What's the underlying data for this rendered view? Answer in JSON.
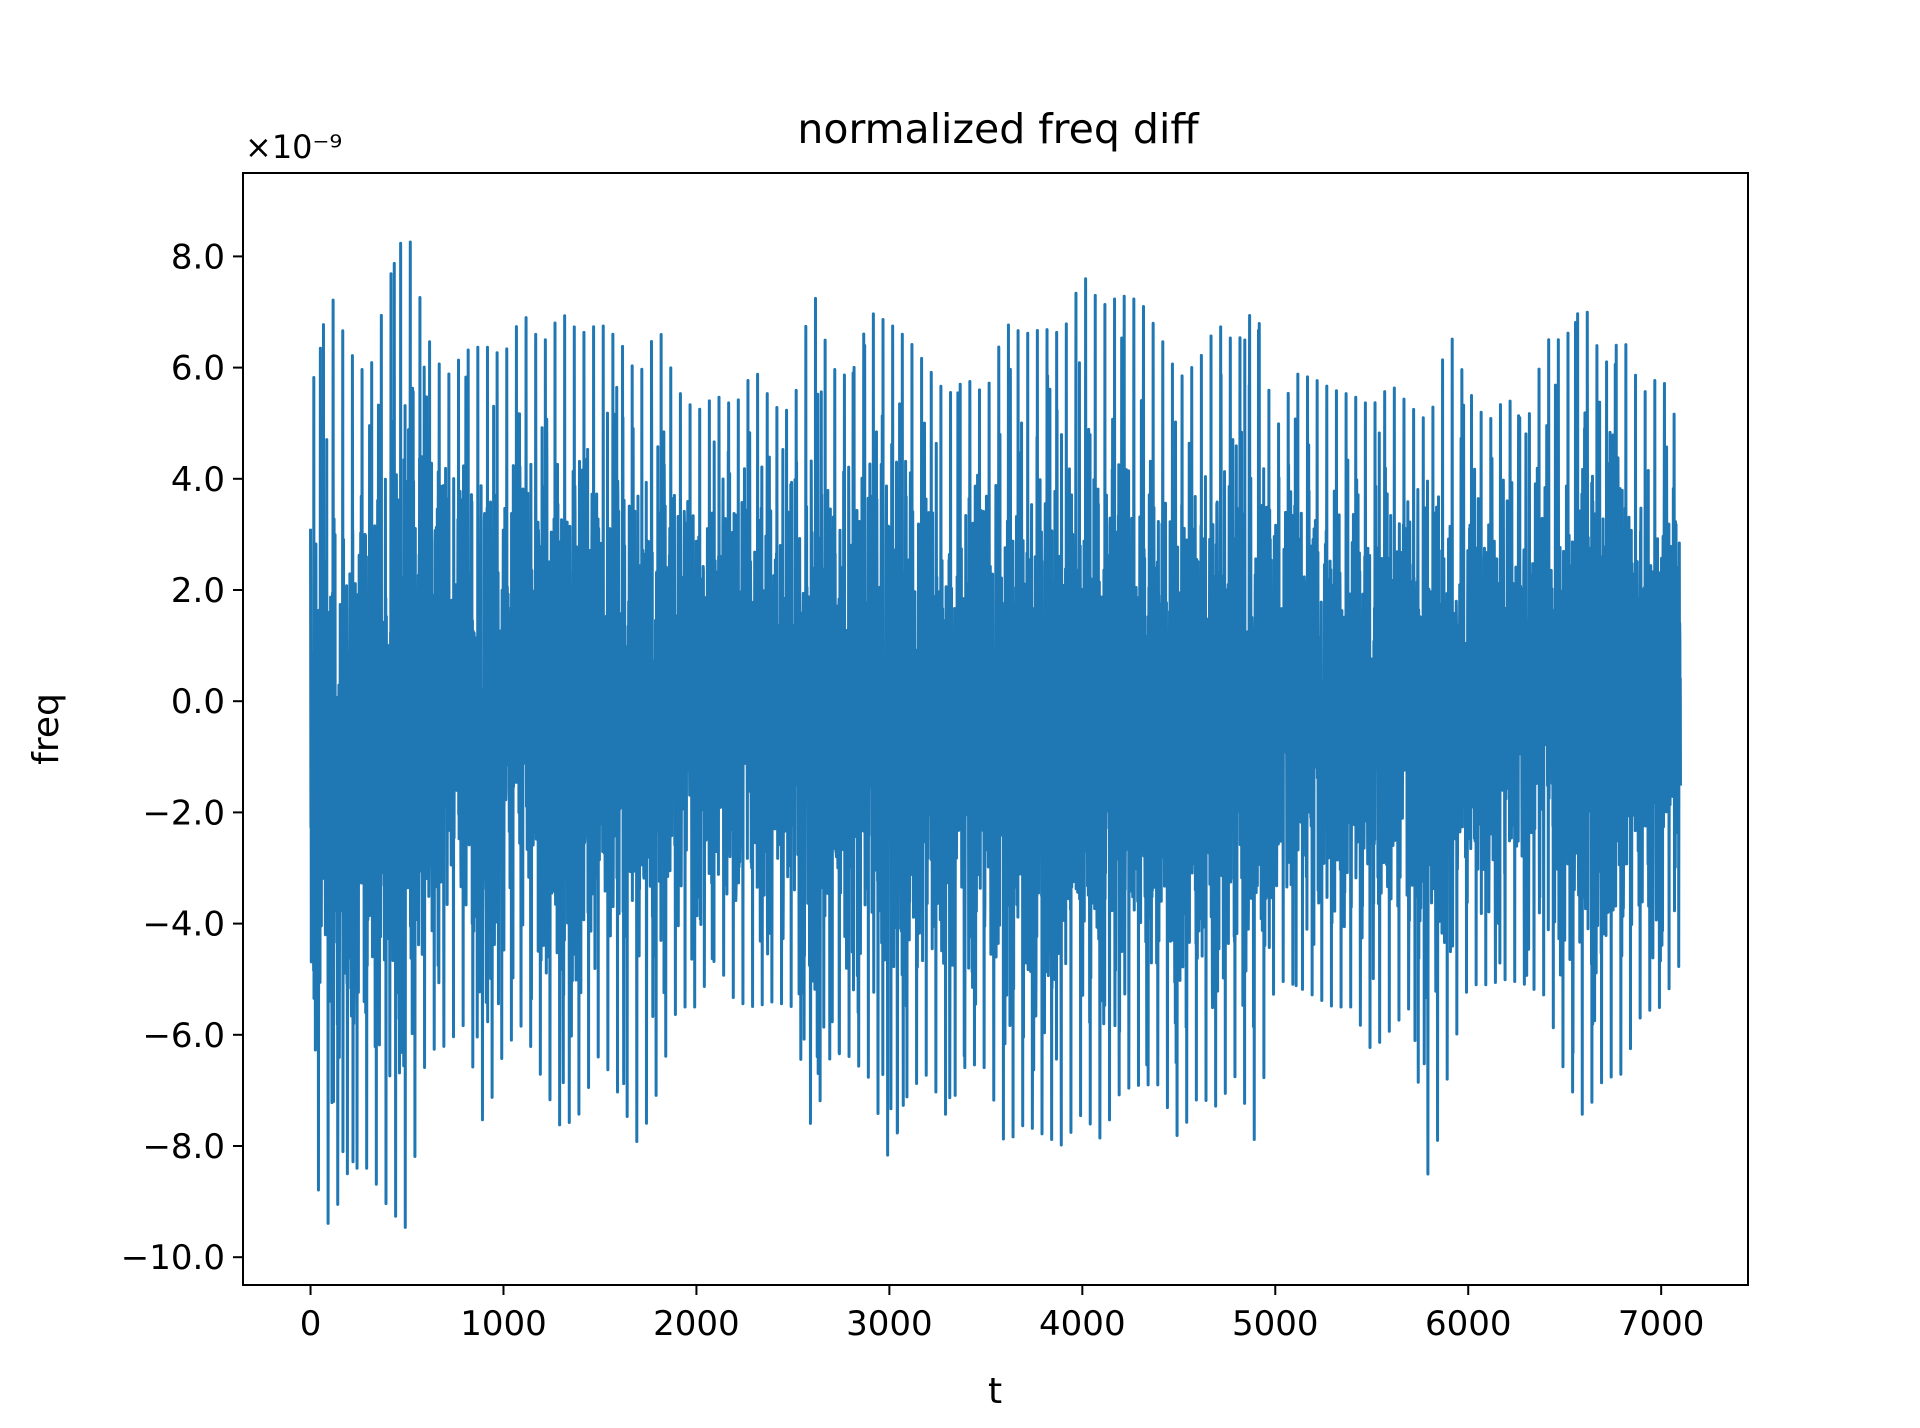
{
  "chart_data": {
    "type": "line",
    "title": "normalized freq diff",
    "xlabel": "t",
    "ylabel": "freq",
    "y_offset_label": "×10⁻⁹",
    "xlim": [
      -350,
      7450
    ],
    "ylim": [
      -10.5,
      9.5
    ],
    "x_ticks": [
      0,
      1000,
      2000,
      3000,
      4000,
      5000,
      6000,
      7000
    ],
    "x_tick_labels": [
      "0",
      "1000",
      "2000",
      "3000",
      "4000",
      "5000",
      "6000",
      "7000"
    ],
    "y_ticks": [
      -10,
      -8,
      -6,
      -4,
      -2,
      0,
      2,
      4,
      6,
      8
    ],
    "y_tick_labels": [
      "−10.0",
      "−8.0",
      "−6.0",
      "−4.0",
      "−2.0",
      "0.0",
      "2.0",
      "4.0",
      "6.0",
      "8.0"
    ],
    "grid": false,
    "series": [
      {
        "color": "#1f77b4",
        "x_range": [
          0,
          7100
        ],
        "sample_count": 7101,
        "envelope_step": 100,
        "envelope_x": [
          0,
          100,
          200,
          300,
          400,
          500,
          600,
          700,
          800,
          900,
          1000,
          1100,
          1200,
          1300,
          1400,
          1500,
          1600,
          1700,
          1800,
          1900,
          2000,
          2100,
          2200,
          2300,
          2400,
          2500,
          2600,
          2700,
          2800,
          2900,
          3000,
          3100,
          3200,
          3300,
          3400,
          3500,
          3600,
          3700,
          3800,
          3900,
          4000,
          4100,
          4200,
          4300,
          4400,
          4500,
          4600,
          4700,
          4800,
          4900,
          5000,
          5100,
          5200,
          5300,
          5400,
          5500,
          5600,
          5700,
          5800,
          5900,
          6000,
          6100,
          6200,
          6300,
          6400,
          6500,
          6600,
          6700,
          6800,
          6900,
          7000,
          7100
        ],
        "envelope_max": [
          5.5,
          7.4,
          6.3,
          5.8,
          7.5,
          8.6,
          6.6,
          5.8,
          6.3,
          6.4,
          6.2,
          7.0,
          6.4,
          7.0,
          6.6,
          6.8,
          6.5,
          5.8,
          6.8,
          5.6,
          5.2,
          5.5,
          5.3,
          6.0,
          5.3,
          5.2,
          7.5,
          6.0,
          5.8,
          7.0,
          6.8,
          6.5,
          6.0,
          5.5,
          5.8,
          5.5,
          6.8,
          6.6,
          6.7,
          6.6,
          7.7,
          7.1,
          7.3,
          7.2,
          6.6,
          5.8,
          6.1,
          6.8,
          6.4,
          7.2,
          4.8,
          5.9,
          5.8,
          5.6,
          5.5,
          5.3,
          5.7,
          5.3,
          5.0,
          6.7,
          5.6,
          5.0,
          5.5,
          4.9,
          6.5,
          6.5,
          7.2,
          6.0,
          6.6,
          5.5,
          5.9,
          4.8
        ],
        "envelope_min": [
          -8.3,
          -9.5,
          -8.4,
          -8.4,
          -9.1,
          -9.5,
          -6.3,
          -6.2,
          -5.8,
          -7.7,
          -6.3,
          -5.8,
          -6.8,
          -7.7,
          -7.4,
          -6.3,
          -7.1,
          -8.0,
          -7.0,
          -5.5,
          -5.5,
          -4.6,
          -5.4,
          -5.5,
          -5.4,
          -5.5,
          -7.8,
          -6.3,
          -6.4,
          -6.8,
          -8.3,
          -7.0,
          -6.7,
          -7.5,
          -6.5,
          -6.6,
          -8.0,
          -7.6,
          -7.8,
          -8.0,
          -7.4,
          -7.9,
          -7.0,
          -6.9,
          -6.9,
          -7.9,
          -7.1,
          -7.3,
          -6.7,
          -8.0,
          -5.0,
          -5.1,
          -5.3,
          -5.5,
          -5.5,
          -6.3,
          -5.9,
          -5.5,
          -8.8,
          -6.6,
          -5.1,
          -5.1,
          -5.0,
          -5.1,
          -5.3,
          -6.7,
          -7.5,
          -6.8,
          -6.7,
          -5.6,
          -5.5,
          -4.7
        ]
      }
    ]
  }
}
